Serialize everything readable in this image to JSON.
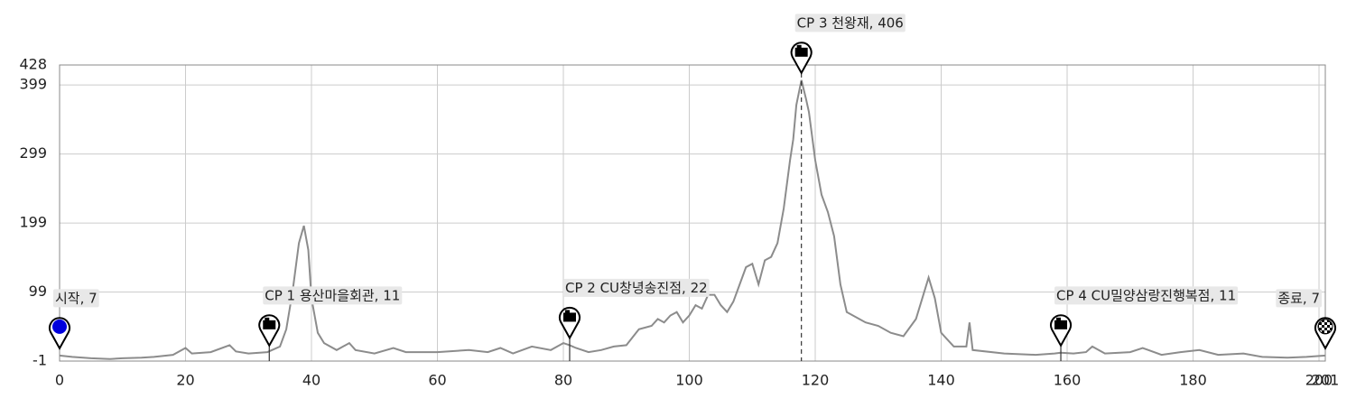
{
  "chart_data": {
    "type": "line",
    "color": "#8c8c8c",
    "grid": true,
    "xlim": [
      0,
      201
    ],
    "xticks": [
      0,
      20,
      40,
      60,
      80,
      100,
      120,
      140,
      160,
      180,
      200,
      201
    ],
    "ylim": [
      -1,
      428
    ],
    "yticks": [
      -1,
      99,
      199,
      299,
      399,
      428
    ],
    "x": [
      0,
      2,
      5,
      8,
      10,
      13,
      15,
      18,
      20,
      21,
      24,
      27,
      28,
      30,
      33,
      35,
      36,
      37,
      38,
      38.8,
      39.5,
      40,
      41,
      42,
      44,
      46,
      47,
      50,
      53,
      55,
      60,
      65,
      68,
      70,
      72,
      75,
      78,
      80,
      81,
      82,
      84,
      86,
      88,
      90,
      92,
      94,
      95,
      96,
      97,
      98,
      99,
      100,
      101,
      102,
      103,
      104,
      105,
      106,
      107,
      108,
      109,
      110,
      111,
      112,
      113,
      114,
      115,
      116,
      116.5,
      117,
      117.8,
      118.5,
      119,
      120,
      121,
      122,
      123,
      124,
      125,
      127,
      128,
      130,
      132,
      134,
      136,
      137,
      138,
      139,
      140,
      142,
      144,
      144.5,
      145,
      150,
      155,
      158,
      159,
      161,
      163,
      164,
      166,
      170,
      172,
      175,
      178,
      181,
      184,
      188,
      191,
      195,
      198,
      201
    ],
    "values": [
      7,
      5,
      3,
      2,
      3,
      4,
      5,
      8,
      18,
      10,
      12,
      22,
      13,
      10,
      12,
      20,
      45,
      100,
      170,
      195,
      160,
      90,
      40,
      25,
      15,
      25,
      15,
      10,
      18,
      12,
      12,
      15,
      12,
      18,
      10,
      20,
      15,
      25,
      22,
      18,
      12,
      15,
      20,
      22,
      45,
      50,
      60,
      55,
      65,
      70,
      55,
      65,
      80,
      75,
      95,
      95,
      80,
      70,
      85,
      110,
      135,
      140,
      110,
      145,
      150,
      170,
      220,
      290,
      320,
      370,
      406,
      380,
      360,
      290,
      240,
      215,
      180,
      110,
      70,
      60,
      55,
      50,
      40,
      35,
      60,
      90,
      120,
      90,
      40,
      20,
      20,
      55,
      15,
      10,
      8,
      10,
      11,
      10,
      12,
      20,
      10,
      12,
      18,
      8,
      12,
      15,
      8,
      10,
      5,
      4,
      5,
      7
    ],
    "checkpoints": {
      "x": [
        0,
        33.3,
        81,
        117.8,
        159,
        201
      ],
      "values": [
        7,
        11,
        22,
        406,
        11,
        7
      ],
      "value_labels": [
        "시작, 7",
        "CP 1 용산마을회관, 11",
        "CP 2 CU창녕송진점, 22",
        "CP 3 천왕재, 406",
        "CP 4 CU밀양삼랑진행복점, 11",
        "종료, 7"
      ]
    }
  }
}
